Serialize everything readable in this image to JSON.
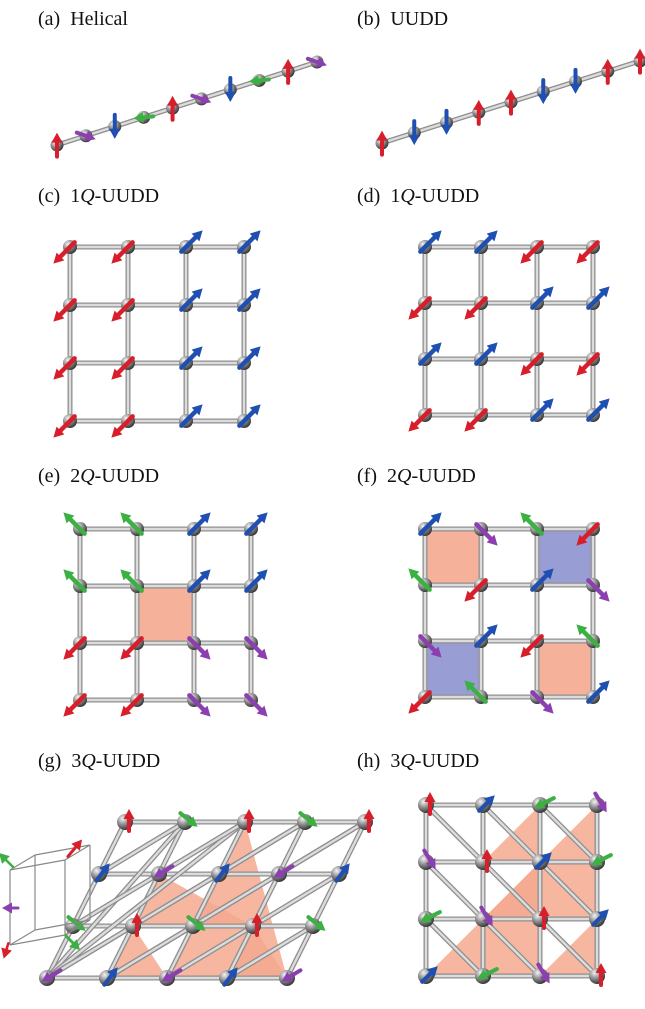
{
  "panels": {
    "a": {
      "tag": "(a)",
      "title": "Helical"
    },
    "b": {
      "tag": "(b)",
      "title": "UUDD"
    },
    "c": {
      "tag": "(c)",
      "prefix": "1",
      "q": "Q",
      "suffix": "-UUDD"
    },
    "d": {
      "tag": "(d)",
      "prefix": "1",
      "q": "Q",
      "suffix": "-UUDD"
    },
    "e": {
      "tag": "(e)",
      "prefix": "2",
      "q": "Q",
      "suffix": "-UUDD"
    },
    "f": {
      "tag": "(f)",
      "prefix": "2",
      "q": "Q",
      "suffix": "-UUDD"
    },
    "g": {
      "tag": "(g)",
      "prefix": "3",
      "q": "Q",
      "suffix": "-UUDD"
    },
    "h": {
      "tag": "(h)",
      "prefix": "3",
      "q": "Q",
      "suffix": "-UUDD"
    }
  },
  "colors": {
    "red": "#d81e2a",
    "blue": "#1f4fb0",
    "green": "#3cb043",
    "purple": "#8c3fb0",
    "pink": "#f4a98f",
    "lavender": "#8d93cf",
    "bond": "#b8b8b8",
    "atom": "#8a8a8a"
  },
  "spin_grids": {
    "c": [
      "RRBB",
      "RRBB",
      "RRBB",
      "RRBB"
    ],
    "d": [
      "BBRR",
      "RRBB",
      "BBRR",
      "RRBB"
    ],
    "e": [
      "GGBB",
      "GGBB",
      "RRPP",
      "RRPP"
    ],
    "f": [
      "BPGR",
      "GRBP",
      "PBRG",
      "RGPB"
    ]
  },
  "plaquettes": {
    "e": [
      {
        "row": 1,
        "col": 1,
        "color": "pink"
      }
    ],
    "f": [
      {
        "row": 0,
        "col": 0,
        "color": "pink"
      },
      {
        "row": 0,
        "col": 2,
        "color": "lavender"
      },
      {
        "row": 2,
        "col": 0,
        "color": "lavender"
      },
      {
        "row": 2,
        "col": 2,
        "color": "pink"
      }
    ]
  }
}
